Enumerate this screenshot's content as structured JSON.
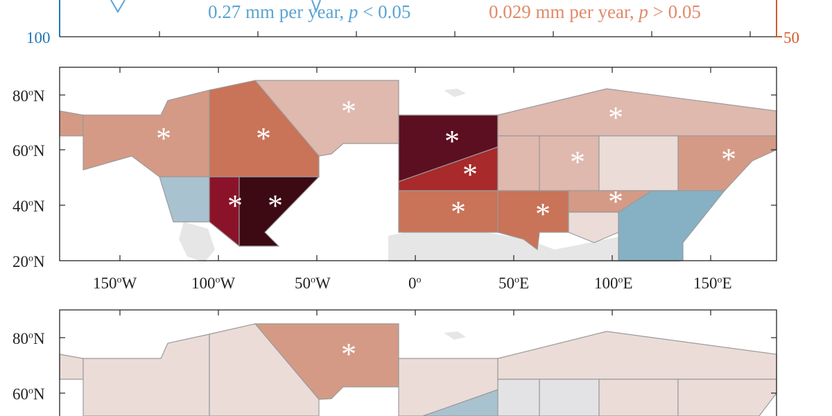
{
  "top_panel": {
    "left_axis_value": "100",
    "right_axis_value": "50",
    "trend_left": "0.27 mm per year, ",
    "trend_left_p": "p",
    "trend_left_rel": " < 0.05",
    "trend_right": "0.029 mm per year, ",
    "trend_right_p": "p",
    "trend_right_rel": " > 0.05",
    "colors": {
      "left": "#1f77b4",
      "right": "#d35a2a"
    }
  },
  "map_axes": {
    "lat_ticks": [
      {
        "deg": "80",
        "hemi": "N"
      },
      {
        "deg": "60",
        "hemi": "N"
      },
      {
        "deg": "40",
        "hemi": "N"
      },
      {
        "deg": "20",
        "hemi": "N"
      }
    ],
    "lon_ticks": [
      {
        "deg": "150",
        "hemi": "W"
      },
      {
        "deg": "100",
        "hemi": "W"
      },
      {
        "deg": "50",
        "hemi": "W"
      },
      {
        "deg": "0",
        "hemi": ""
      },
      {
        "deg": "50",
        "hemi": "E"
      },
      {
        "deg": "100",
        "hemi": "E"
      },
      {
        "deg": "150",
        "hemi": "E"
      }
    ],
    "degree_symbol": "o",
    "significance_marker": "*"
  },
  "legend_colors": {
    "dark_red": "#5c0f20",
    "red": "#a82a2a",
    "orange": "#c97358",
    "salmon": "#d49a86",
    "pink": "#dfb8ae",
    "light_pink": "#ebdcd8",
    "gray": "#e3e3e5",
    "blue_gray": "#a9c2cf",
    "blue": "#86b0c3"
  }
}
